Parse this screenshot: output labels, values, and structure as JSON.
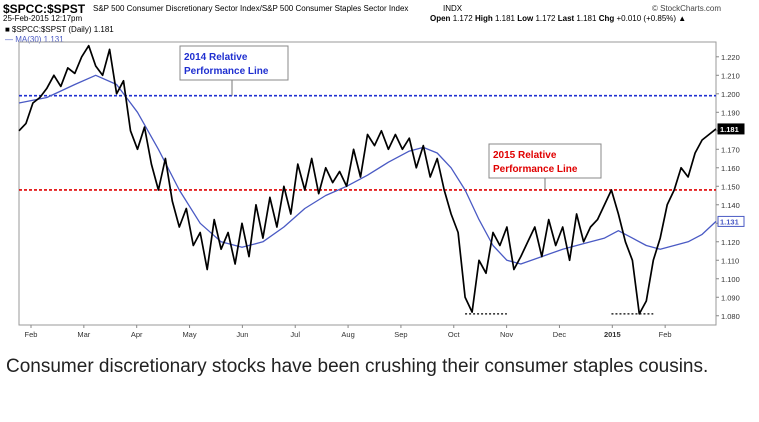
{
  "header": {
    "symbol": "$SPCC:$SPST",
    "description": "S&P 500 Consumer Discretionary Sector Index/S&P 500 Consumer Staples Sector Index",
    "exchange": "INDX",
    "source": "© StockCharts.com",
    "date": "25-Feb-2015 12:17pm",
    "legend_series": "■ $SPCC:$SPST (Daily) 1.181",
    "legend_ma": "— MA(30) 1.131",
    "quote": {
      "open_label": "Open",
      "open": "1.172",
      "high_label": "High",
      "high": "1.181",
      "low_label": "Low",
      "low": "1.172",
      "last_label": "Last",
      "last": "1.181",
      "chg_label": "Chg",
      "chg": "+0.010 (+0.85%) ▲"
    }
  },
  "colors": {
    "price_line": "#000000",
    "ma_line": "#4a5ac4",
    "line_2014": "#1f2fd0",
    "line_2015": "#e00000",
    "annotation_2014_text": "#1f2fd0",
    "annotation_2015_text": "#e00000"
  },
  "chart_data": {
    "type": "line",
    "x_labels": [
      "Feb",
      "Mar",
      "Apr",
      "May",
      "Jun",
      "Jul",
      "Aug",
      "Sep",
      "Oct",
      "Nov",
      "Dec",
      "2015",
      "Feb"
    ],
    "y_ticks": [
      "1.220",
      "1.210",
      "1.200",
      "1.190",
      "1.180",
      "1.170",
      "1.160",
      "1.150",
      "1.140",
      "1.130",
      "1.120",
      "1.110",
      "1.100",
      "1.090",
      "1.080"
    ],
    "ylim": [
      1.075,
      1.228
    ],
    "x_range": [
      0,
      100
    ],
    "series": [
      {
        "name": "$SPCC:$SPST (Daily)",
        "last": "1.181",
        "points": [
          [
            0,
            1.18
          ],
          [
            1,
            1.184
          ],
          [
            2,
            1.195
          ],
          [
            3,
            1.198
          ],
          [
            4,
            1.203
          ],
          [
            5,
            1.21
          ],
          [
            6,
            1.204
          ],
          [
            7,
            1.214
          ],
          [
            8,
            1.211
          ],
          [
            9,
            1.22
          ],
          [
            10,
            1.226
          ],
          [
            11,
            1.215
          ],
          [
            12,
            1.21
          ],
          [
            13,
            1.224
          ],
          [
            14,
            1.2
          ],
          [
            15,
            1.207
          ],
          [
            16,
            1.18
          ],
          [
            17,
            1.17
          ],
          [
            18,
            1.182
          ],
          [
            19,
            1.162
          ],
          [
            20,
            1.148
          ],
          [
            21,
            1.165
          ],
          [
            22,
            1.142
          ],
          [
            23,
            1.128
          ],
          [
            24,
            1.138
          ],
          [
            25,
            1.118
          ],
          [
            26,
            1.125
          ],
          [
            27,
            1.105
          ],
          [
            28,
            1.132
          ],
          [
            29,
            1.116
          ],
          [
            30,
            1.125
          ],
          [
            31,
            1.108
          ],
          [
            32,
            1.13
          ],
          [
            33,
            1.112
          ],
          [
            34,
            1.14
          ],
          [
            35,
            1.122
          ],
          [
            36,
            1.144
          ],
          [
            37,
            1.128
          ],
          [
            38,
            1.15
          ],
          [
            39,
            1.135
          ],
          [
            40,
            1.162
          ],
          [
            41,
            1.148
          ],
          [
            42,
            1.165
          ],
          [
            43,
            1.146
          ],
          [
            44,
            1.16
          ],
          [
            45,
            1.152
          ],
          [
            46,
            1.158
          ],
          [
            47,
            1.15
          ],
          [
            48,
            1.17
          ],
          [
            49,
            1.155
          ],
          [
            50,
            1.178
          ],
          [
            51,
            1.172
          ],
          [
            52,
            1.18
          ],
          [
            53,
            1.17
          ],
          [
            54,
            1.178
          ],
          [
            55,
            1.17
          ],
          [
            56,
            1.176
          ],
          [
            57,
            1.16
          ],
          [
            58,
            1.172
          ],
          [
            59,
            1.155
          ],
          [
            60,
            1.165
          ],
          [
            61,
            1.148
          ],
          [
            62,
            1.135
          ],
          [
            63,
            1.125
          ],
          [
            64,
            1.09
          ],
          [
            65,
            1.082
          ],
          [
            66,
            1.11
          ],
          [
            67,
            1.103
          ],
          [
            68,
            1.125
          ],
          [
            69,
            1.118
          ],
          [
            70,
            1.128
          ],
          [
            71,
            1.105
          ],
          [
            72,
            1.112
          ],
          [
            73,
            1.12
          ],
          [
            74,
            1.128
          ],
          [
            75,
            1.112
          ],
          [
            76,
            1.132
          ],
          [
            77,
            1.118
          ],
          [
            78,
            1.128
          ],
          [
            79,
            1.11
          ],
          [
            80,
            1.135
          ],
          [
            81,
            1.12
          ],
          [
            82,
            1.128
          ],
          [
            83,
            1.132
          ],
          [
            84,
            1.14
          ],
          [
            85,
            1.148
          ],
          [
            86,
            1.135
          ],
          [
            87,
            1.12
          ],
          [
            88,
            1.11
          ],
          [
            89,
            1.081
          ],
          [
            90,
            1.088
          ],
          [
            91,
            1.11
          ],
          [
            92,
            1.122
          ],
          [
            93,
            1.14
          ],
          [
            94,
            1.148
          ],
          [
            95,
            1.16
          ],
          [
            96,
            1.155
          ],
          [
            97,
            1.168
          ],
          [
            98,
            1.175
          ],
          [
            99,
            1.178
          ],
          [
            100,
            1.181
          ]
        ]
      },
      {
        "name": "MA(30)",
        "last": "1.131",
        "points": [
          [
            0,
            1.195
          ],
          [
            4,
            1.198
          ],
          [
            8,
            1.205
          ],
          [
            11,
            1.21
          ],
          [
            14,
            1.205
          ],
          [
            17,
            1.19
          ],
          [
            20,
            1.17
          ],
          [
            23,
            1.148
          ],
          [
            26,
            1.13
          ],
          [
            29,
            1.12
          ],
          [
            32,
            1.117
          ],
          [
            35,
            1.12
          ],
          [
            38,
            1.128
          ],
          [
            41,
            1.138
          ],
          [
            44,
            1.145
          ],
          [
            47,
            1.15
          ],
          [
            50,
            1.156
          ],
          [
            53,
            1.163
          ],
          [
            56,
            1.169
          ],
          [
            58,
            1.171
          ],
          [
            60,
            1.168
          ],
          [
            62,
            1.16
          ],
          [
            64,
            1.148
          ],
          [
            66,
            1.132
          ],
          [
            68,
            1.118
          ],
          [
            70,
            1.11
          ],
          [
            72,
            1.108
          ],
          [
            75,
            1.112
          ],
          [
            78,
            1.116
          ],
          [
            81,
            1.119
          ],
          [
            84,
            1.122
          ],
          [
            86,
            1.126
          ],
          [
            88,
            1.122
          ],
          [
            90,
            1.118
          ],
          [
            92,
            1.116
          ],
          [
            94,
            1.118
          ],
          [
            96,
            1.12
          ],
          [
            98,
            1.124
          ],
          [
            100,
            1.131
          ]
        ]
      }
    ],
    "reference_lines": [
      {
        "label": "2014 Relative Performance Line",
        "y": 1.199
      },
      {
        "label": "2015 Relative Performance Line",
        "y": 1.148
      }
    ],
    "support_segments": [
      {
        "from_x": 64,
        "to_x": 70,
        "y": 1.081
      },
      {
        "from_x": 85,
        "to_x": 91,
        "y": 1.081
      }
    ],
    "annotations": [
      {
        "line1": "2014 Relative",
        "line2": "Performance Line"
      },
      {
        "line1": "2015 Relative",
        "line2": "Performance Line"
      }
    ]
  },
  "caption": "Consumer discretionary stocks have been crushing their consumer staples cousins."
}
